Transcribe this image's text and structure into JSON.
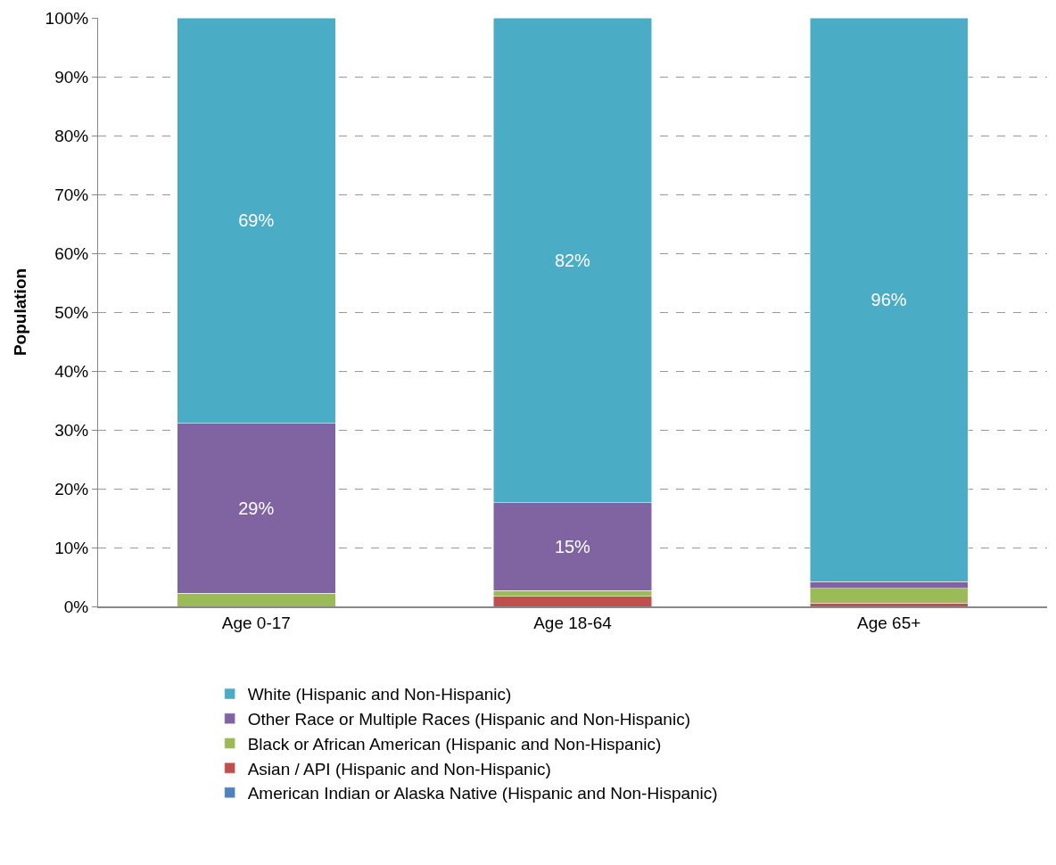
{
  "chart_data": {
    "type": "bar",
    "stacked": true,
    "ylabel": "Population",
    "categories": [
      "Age 0-17",
      "Age 18-64",
      "Age 65+"
    ],
    "series": [
      {
        "name": "American Indian or Alaska Native (Hispanic and Non-Hispanic)",
        "color": "#4f81bd",
        "values": [
          0,
          0,
          0
        ],
        "value_labels": [
          null,
          null,
          null
        ]
      },
      {
        "name": "Asian / API (Hispanic and Non-Hispanic)",
        "color": "#c0504d",
        "values": [
          0,
          1.7,
          0.6
        ],
        "value_labels": [
          null,
          null,
          null
        ]
      },
      {
        "name": "Black or African American (Hispanic and Non-Hispanic)",
        "color": "#9bbb59",
        "values": [
          2.2,
          1.0,
          2.5
        ],
        "value_labels": [
          null,
          null,
          null
        ]
      },
      {
        "name": "Other Race or Multiple Races (Hispanic and Non-Hispanic)",
        "color": "#8064a2",
        "values": [
          28.9,
          14.9,
          1.1
        ],
        "value_labels": [
          "29%",
          "15%",
          null
        ]
      },
      {
        "name": "White (Hispanic and Non-Hispanic)",
        "color": "#4bacc6",
        "values": [
          68.9,
          82.4,
          95.8
        ],
        "value_labels": [
          "69%",
          "82%",
          "96%"
        ]
      }
    ],
    "ylim": [
      0,
      100
    ],
    "yticks": [
      {
        "value": 0,
        "label": "0%"
      },
      {
        "value": 10,
        "label": "10%"
      },
      {
        "value": 20,
        "label": "20%"
      },
      {
        "value": 30,
        "label": "30%"
      },
      {
        "value": 40,
        "label": "40%"
      },
      {
        "value": 50,
        "label": "50%"
      },
      {
        "value": 60,
        "label": "60%"
      },
      {
        "value": 70,
        "label": "70%"
      },
      {
        "value": 80,
        "label": "80%"
      },
      {
        "value": 90,
        "label": "90%"
      },
      {
        "value": 100,
        "label": "100%"
      }
    ],
    "grid": "y",
    "legend": "bottom"
  }
}
